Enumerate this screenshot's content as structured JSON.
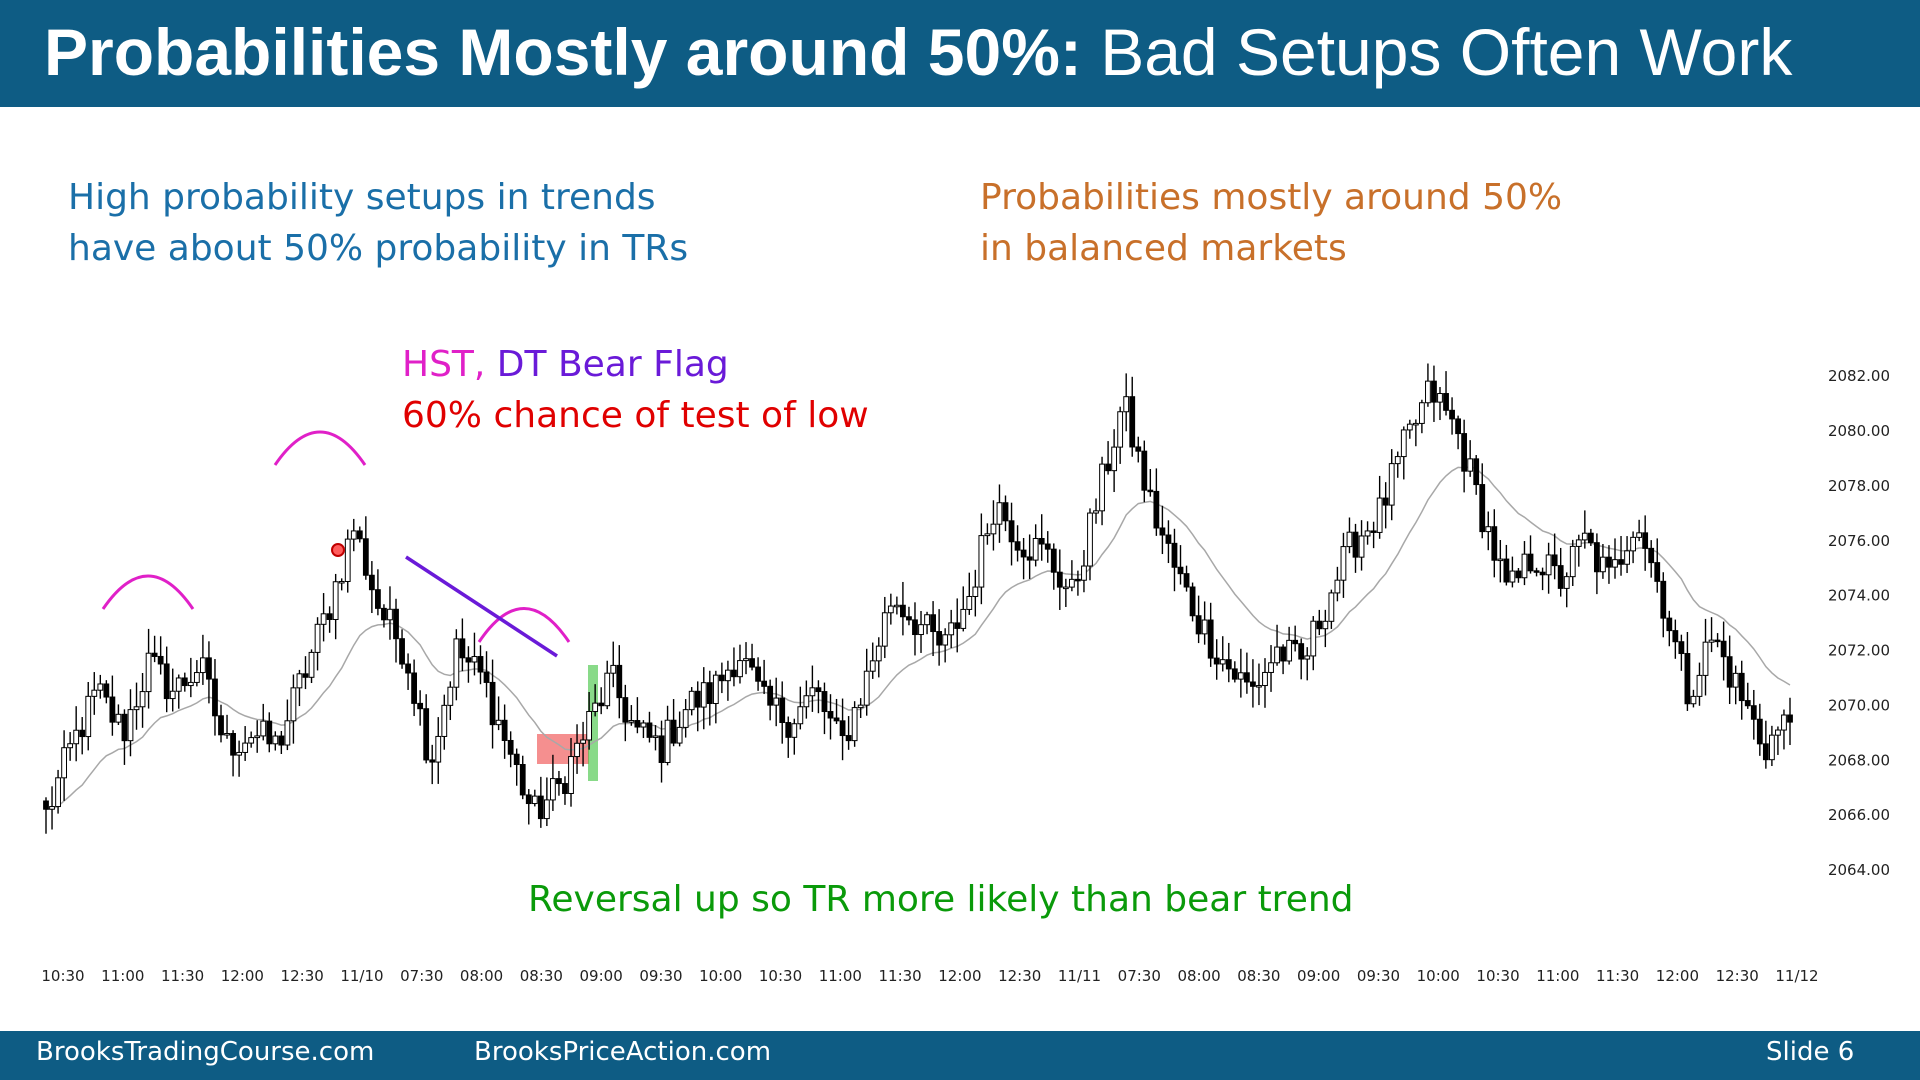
{
  "slide": {
    "title_bold": "Probabilities Mostly around 50%:",
    "title_rest": " Bad Setups Often Work",
    "slide_label": "Slide",
    "slide_number": "6"
  },
  "annotations": {
    "left_line1": "High probability setups in trends",
    "left_line2": "have about 50% probability in TRs",
    "right_line1": "Probabilities mostly around 50%",
    "right_line2": "in balanced markets",
    "hst": "HST,",
    "dt_bear_flag": " DT Bear Flag",
    "test_of_low": "60% chance of test of low",
    "reversal": "Reversal up so TR more likely than bear trend"
  },
  "footer": {
    "left": "BrooksTradingCourse.com",
    "center": "BrooksPriceAction.com"
  },
  "colors": {
    "header_bg": "#0e5c84",
    "blue_text": "#1a6fa8",
    "orange_text": "#c8702a",
    "magenta": "#e020c8",
    "purple": "#6a1ad8",
    "red": "#e00000",
    "green": "#0a9a0a"
  },
  "chart_data": {
    "type": "candlestick",
    "ylim": [
      2063,
      2083.5
    ],
    "y_ticks": [
      "2082.00",
      "2080.00",
      "2078.00",
      "2076.00",
      "2074.00",
      "2072.00",
      "2070.00",
      "2068.00",
      "2066.00",
      "2064.00"
    ],
    "x_labels": [
      "10:30",
      "11:00",
      "11:30",
      "12:00",
      "12:30",
      "11/10",
      "07:30",
      "08:00",
      "08:30",
      "09:00",
      "09:30",
      "10:00",
      "10:30",
      "11:00",
      "11:30",
      "12:00",
      "12:30",
      "11/11",
      "07:30",
      "08:00",
      "08:30",
      "09:00",
      "09:30",
      "10:00",
      "10:30",
      "11:00",
      "11:30",
      "12:00",
      "12:30",
      "11/12"
    ],
    "close_path": [
      2066.0,
      2068.5,
      2070.5,
      2069.0,
      2071.5,
      2070.5,
      2071.5,
      2068.5,
      2069.0,
      2068.5,
      2071.0,
      2073.5,
      2076.5,
      2073.5,
      2072.0,
      2068.0,
      2072.0,
      2071.0,
      2068.5,
      2066.0,
      2067.0,
      2069.0,
      2071.0,
      2069.0,
      2068.5,
      2070.0,
      2070.5,
      2072.0,
      2070.0,
      2069.5,
      2070.5,
      2068.5,
      2071.0,
      2074.0,
      2073.0,
      2072.0,
      2074.0,
      2077.5,
      2076.0,
      2075.5,
      2074.0,
      2077.5,
      2081.0,
      2077.5,
      2075.0,
      2073.0,
      2071.5,
      2070.5,
      2072.0,
      2071.5,
      2074.0,
      2076.0,
      2077.0,
      2079.5,
      2081.5,
      2080.0,
      2077.0,
      2074.0,
      2075.5,
      2074.5,
      2076.0,
      2074.5,
      2077.0,
      2074.0,
      2070.5,
      2072.5,
      2070.5,
      2068.5,
      2069.5
    ]
  }
}
